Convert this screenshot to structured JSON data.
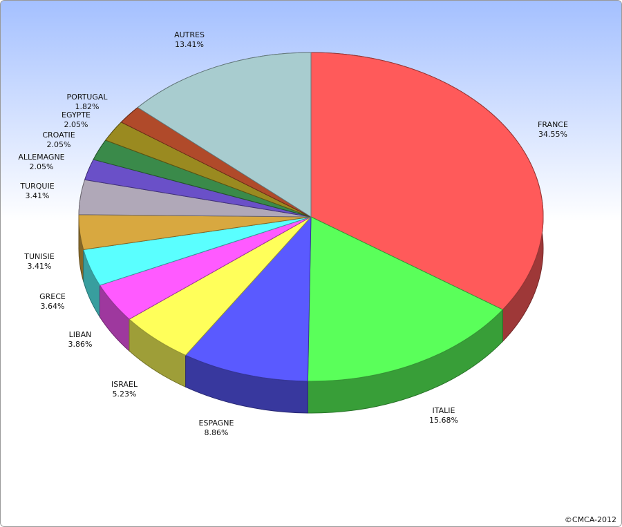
{
  "chart_data": {
    "type": "pie",
    "categories": [
      "FRANCE",
      "ITALIE",
      "ESPAGNE",
      "ISRAEL",
      "LIBAN",
      "GRECE",
      "TUNISIE",
      "TURQUIE",
      "ALLEMAGNE",
      "CROATIE",
      "EGYPTE",
      "PORTUGAL",
      "AUTRES"
    ],
    "values": [
      34.55,
      15.68,
      8.86,
      5.23,
      3.86,
      3.64,
      3.41,
      3.41,
      2.05,
      2.05,
      2.05,
      1.82,
      13.41
    ],
    "value_labels": [
      "34.55%",
      "15.68%",
      "8.86%",
      "5.23%",
      "3.86%",
      "3.64%",
      "3.41%",
      "3.41%",
      "2.05%",
      "2.05%",
      "2.05%",
      "1.82%",
      "13.41%"
    ],
    "colors": [
      "#ff5a5a",
      "#5aff5a",
      "#5a5aff",
      "#ffff5a",
      "#ff5aff",
      "#5affff",
      "#d8a840",
      "#b0a8b8",
      "#6a50c8",
      "#3a8a4a",
      "#9a8a20",
      "#b04a2a",
      "#a8cccf"
    ]
  },
  "credit": "©CMCA-2012"
}
